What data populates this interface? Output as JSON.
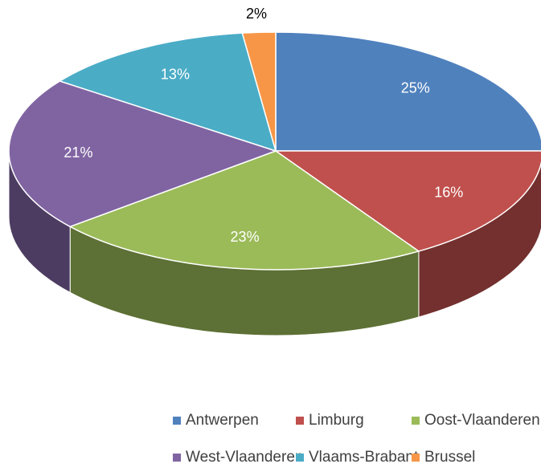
{
  "chart_data": {
    "type": "pie",
    "categories": [
      "Antwerpen",
      "Limburg",
      "Oost-Vlaanderen",
      "West-Vlaanderen",
      "Vlaams-Brabant",
      "Brussel"
    ],
    "values": [
      25,
      16,
      23,
      21,
      13,
      2
    ],
    "value_labels": [
      "25%",
      "16%",
      "23%",
      "21%",
      "13%",
      "2%"
    ],
    "colors": [
      "#4f81bd",
      "#c0504d",
      "#9bbb59",
      "#8064a2",
      "#4bacc6",
      "#f79646"
    ],
    "legend": "bottom"
  }
}
